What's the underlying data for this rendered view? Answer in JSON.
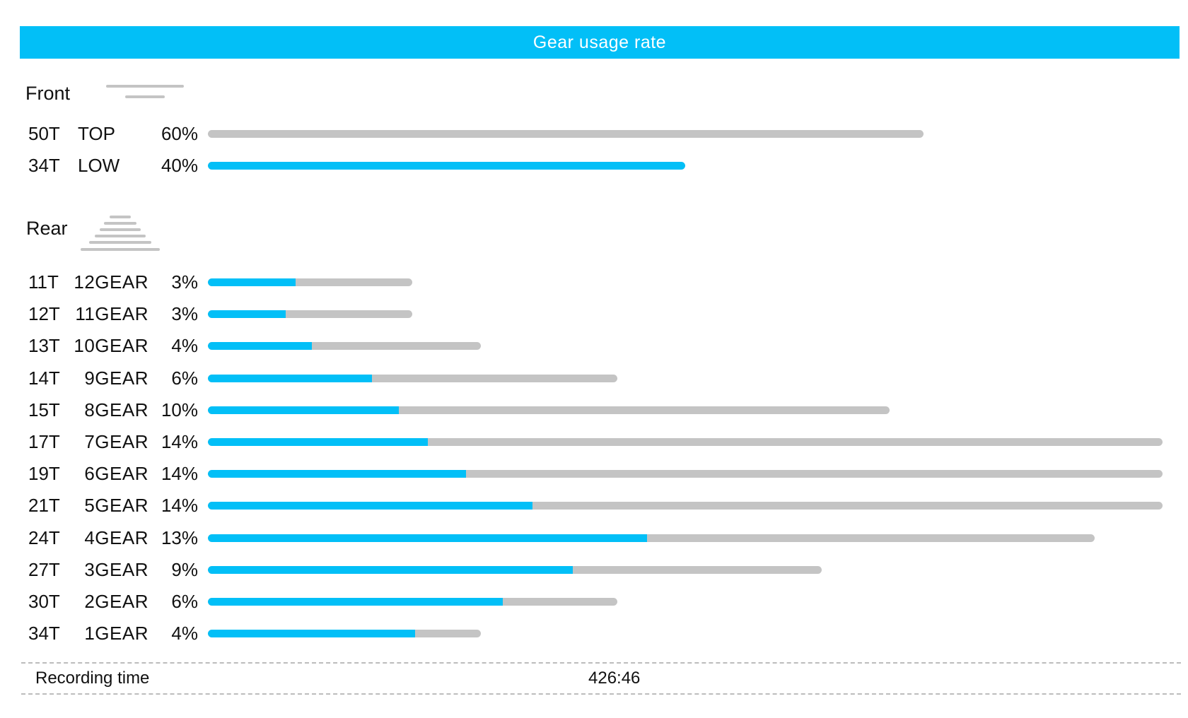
{
  "title": "Gear usage rate",
  "front": {
    "label": "Front",
    "icon": "front-chainring-icon",
    "gears": [
      {
        "teeth": "50T",
        "name": "TOP",
        "pct": "60%",
        "usage": 0.6,
        "fill_fraction": 0.0
      },
      {
        "teeth": "34T",
        "name": "LOW",
        "pct": "40%",
        "usage": 0.4,
        "fill_fraction": 1.0
      }
    ]
  },
  "rear": {
    "label": "Rear",
    "icon": "rear-cassette-icon",
    "gears": [
      {
        "teeth": "11T",
        "name": "12GEAR",
        "pct": "3%",
        "usage": 0.03,
        "fill_fraction": 0.43
      },
      {
        "teeth": "12T",
        "name": "11GEAR",
        "pct": "3%",
        "usage": 0.03,
        "fill_fraction": 0.38
      },
      {
        "teeth": "13T",
        "name": "10GEAR",
        "pct": "4%",
        "usage": 0.04,
        "fill_fraction": 0.38
      },
      {
        "teeth": "14T",
        "name": "9GEAR",
        "pct": "6%",
        "usage": 0.06,
        "fill_fraction": 0.4
      },
      {
        "teeth": "15T",
        "name": "8GEAR",
        "pct": "10%",
        "usage": 0.1,
        "fill_fraction": 0.28
      },
      {
        "teeth": "17T",
        "name": "7GEAR",
        "pct": "14%",
        "usage": 0.14,
        "fill_fraction": 0.23
      },
      {
        "teeth": "19T",
        "name": "6GEAR",
        "pct": "14%",
        "usage": 0.14,
        "fill_fraction": 0.27
      },
      {
        "teeth": "21T",
        "name": "5GEAR",
        "pct": "14%",
        "usage": 0.14,
        "fill_fraction": 0.34
      },
      {
        "teeth": "24T",
        "name": "4GEAR",
        "pct": "13%",
        "usage": 0.13,
        "fill_fraction": 0.495
      },
      {
        "teeth": "27T",
        "name": "3GEAR",
        "pct": "9%",
        "usage": 0.09,
        "fill_fraction": 0.595
      },
      {
        "teeth": "30T",
        "name": "2GEAR",
        "pct": "6%",
        "usage": 0.06,
        "fill_fraction": 0.72
      },
      {
        "teeth": "34T",
        "name": "1GEAR",
        "pct": "4%",
        "usage": 0.04,
        "fill_fraction": 0.76
      }
    ]
  },
  "footer": {
    "label": "Recording time",
    "value": "426:46"
  },
  "colors": {
    "accent": "#02bff7",
    "track": "#c4c4c4",
    "text": "#111111"
  }
}
